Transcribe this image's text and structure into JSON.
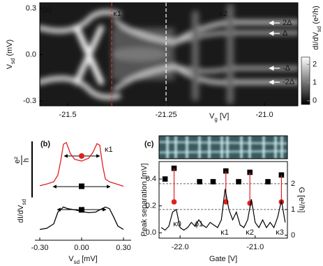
{
  "chart_data": [
    {
      "type": "heatmap",
      "panel_label": "(a)",
      "xlabel": [
        "V",
        "g",
        " [V]"
      ],
      "ylabel": [
        "V",
        "sd",
        " (mV)"
      ],
      "xlim": [
        -21.571,
        -20.915
      ],
      "ylim": [
        -0.332,
        0.336
      ],
      "xticks": [
        -21.5,
        -21.25,
        {
          "value": -21,
          "label": "-21.0"
        }
      ],
      "yticks": [
        0.3,
        {
          "value": 0,
          "label": "0.0"
        },
        -0.3
      ],
      "colorbar": {
        "label": [
          "dI/dV",
          "sd",
          " (e²/h)"
        ],
        "clim": [
          -0.2,
          2.4
        ],
        "ticks": [
          0,
          1,
          2
        ]
      },
      "vlines": [
        {
          "x": -21.388,
          "color": "#e03030"
        },
        {
          "x": -21.25,
          "color": "#ffffff"
        }
      ],
      "annotations": [
        "κ1",
        "κ2",
        "2Δ",
        "Δ",
        "-Δ",
        "-2Δ"
      ]
    },
    {
      "type": "line",
      "panel_label": "(b)",
      "xlabel": [
        "V",
        "sd",
        " [mV]"
      ],
      "ylabel": [
        "dI/dV",
        "sd"
      ],
      "scale_bar": {
        "length": 1,
        "label_top": "e²",
        "label_bottom": "h"
      },
      "xlim": [
        -0.325,
        0.345
      ],
      "ylim": [
        0,
        1.8
      ],
      "xticks": [
        {
          "value": -0.3,
          "label": "-0.30"
        },
        {
          "value": 0,
          "label": "0.00"
        },
        {
          "value": 0.3,
          "label": "0.30"
        }
      ],
      "series": [
        {
          "color": "#e02020",
          "x": [
            -0.3,
            -0.25,
            -0.2,
            -0.17,
            -0.15,
            -0.13,
            -0.11,
            -0.08,
            -0.05,
            0,
            0.05,
            0.08,
            0.11,
            0.13,
            0.15,
            0.17,
            0.2,
            0.25,
            0.3
          ],
          "values": [
            0.91,
            0.94,
            0.98,
            1.1,
            1.35,
            1.65,
            1.68,
            1.48,
            1.38,
            1.35,
            1.4,
            1.5,
            1.66,
            1.63,
            1.28,
            1.03,
            0.98,
            0.94,
            0.9
          ]
        },
        {
          "color": "#000000",
          "x": [
            -0.3,
            -0.25,
            -0.2,
            -0.17,
            -0.13,
            -0.1,
            -0.05,
            0,
            0.05,
            0.1,
            0.13,
            0.17,
            0.2,
            0.23,
            0.26,
            0.3
          ],
          "values": [
            0.13,
            0.15,
            0.23,
            0.44,
            0.53,
            0.5,
            0.48,
            0.45,
            0.43,
            0.44,
            0.48,
            0.53,
            0.5,
            0.35,
            0.19,
            0.13
          ]
        }
      ],
      "points": [
        {
          "x": 0,
          "y": 1.44,
          "color": "#e02020",
          "marker": "circle"
        },
        {
          "x": 0,
          "y": 0.9,
          "color": "#000000",
          "marker": "square"
        },
        {
          "x": 0,
          "y": 0.48,
          "color": "#000000",
          "marker": "square"
        }
      ],
      "annotations": [
        "κ1"
      ]
    },
    {
      "type": "combo",
      "panel_label": "(c)",
      "xlabel": "Gate [V]",
      "ylabel": "Peak separation [mV]",
      "y2label": "G [e²/h]",
      "xlim": [
        -22.28,
        -20.57
      ],
      "ylim": [
        -0.04,
        0.53
      ],
      "y2lim": [
        -0.11,
        2.86
      ],
      "xticks": [
        {
          "value": -22,
          "label": "-22.0"
        },
        {
          "value": -21,
          "label": "-21.0"
        }
      ],
      "yticks": [
        {
          "value": 0,
          "label": "0.0"
        },
        0.2,
        0.4
      ],
      "y2ticks": [
        0,
        1,
        2
      ],
      "hlines_y2": [
        1,
        2
      ],
      "series": [
        {
          "type": "scatter",
          "marker": "square",
          "color": "#000000",
          "x": [
            -22.2,
            -22.08,
            -21.74,
            -21.56,
            -21.39,
            -21.22,
            -21.07,
            -20.83,
            -20.65
          ],
          "values": [
            0.4,
            0.48,
            0.38,
            0.38,
            0.46,
            0.38,
            0.45,
            0.38,
            0.43
          ]
        },
        {
          "type": "scatter",
          "marker": "circle",
          "color": "#e02020",
          "x": [
            -22.08,
            -21.39,
            -21.07,
            -20.65
          ],
          "values": [
            0.23,
            0.23,
            0.22,
            0.23
          ]
        },
        {
          "type": "line",
          "axis": "y2",
          "color": "#000000",
          "x": [
            -22.25,
            -22.2,
            -22.15,
            -22.1,
            -22.05,
            -22.0,
            -21.95,
            -21.9,
            -21.85,
            -21.8,
            -21.75,
            -21.7,
            -21.65,
            -21.6,
            -21.55,
            -21.5,
            -21.45,
            -21.4,
            -21.35,
            -21.3,
            -21.25,
            -21.2,
            -21.15,
            -21.1,
            -21.05,
            -21.0,
            -20.95,
            -20.9,
            -20.85,
            -20.8,
            -20.75,
            -20.7,
            -20.65,
            -20.6
          ],
          "values": [
            0.3,
            0.2,
            0.35,
            0.9,
            1.0,
            0.3,
            0.2,
            0.3,
            0.5,
            0.35,
            0.6,
            0.4,
            0.3,
            0.5,
            0.4,
            0.3,
            0.6,
            1.8,
            1.0,
            0.6,
            0.9,
            0.4,
            0.3,
            0.6,
            1.4,
            0.5,
            0.3,
            0.6,
            0.3,
            0.5,
            0.3,
            0.7,
            1.35,
            0.5
          ]
        }
      ],
      "annotations": [
        "κ0",
        "ϕ1",
        "κ1",
        "κ2",
        "κ3"
      ]
    }
  ]
}
